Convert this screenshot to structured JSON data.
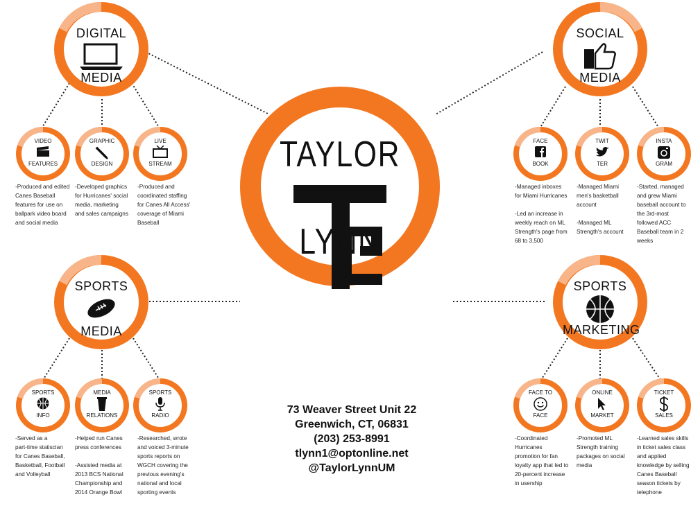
{
  "center": {
    "first_name": "TAYLOR",
    "monogram": "TL",
    "last_name": "LYNN"
  },
  "contact": {
    "address1": "73 Weaver Street Unit 22",
    "address2": "Greenwich, CT, 06831",
    "phone": "(203) 253-8991",
    "email": "tlynn1@optonline.net",
    "handle": "@TaylorLynnUM"
  },
  "hubs": {
    "digital": {
      "top": "DIGITAL",
      "bottom": "MEDIA",
      "icon": "laptop-icon"
    },
    "social": {
      "top": "SOCIAL",
      "bottom": "MEDIA",
      "icon": "thumbs-up-icon"
    },
    "sports_media": {
      "top": "SPORTS",
      "bottom": "MEDIA",
      "icon": "football-icon"
    },
    "sports_marketing": {
      "top": "SPORTS",
      "bottom": "MARKETING",
      "icon": "basketball-icon"
    }
  },
  "skills": {
    "video": {
      "top": "VIDEO",
      "bottom": "FEATURES",
      "desc": "-Produced and edited\nCanes Baseball\nfeatures for use on\nballpark video board\nand social media"
    },
    "graphic": {
      "top": "GRAPHIC",
      "bottom": "DESIGN",
      "desc": "-Developed graphics\nfor Hurricanes' social\nmedia, marketing\nand sales campaigns"
    },
    "live": {
      "top": "LIVE",
      "bottom": "STREAM",
      "desc": "-Produced and\ncoordinated staffing\nfor Canes All Access'\ncoverage of Miami\nBaseball"
    },
    "facebook": {
      "top": "FACE",
      "bottom": "BOOK",
      "desc": "-Managed inboxes\nfor Miami Hurricanes\n\n-Led an increase in\nweekly reach on ML\nStrength's page from\n68 to 3,500"
    },
    "twitter": {
      "top": "TWIT",
      "bottom": "TER",
      "desc": "-Managed Miami\nmen's basketball\naccount\n\n-Managed ML\nStrength's account"
    },
    "instagram": {
      "top": "INSTA",
      "bottom": "GRAM",
      "desc": "-Started, managed\nand grew Miami\nbaseball account to\nthe 3rd-most\nfollowed ACC\nBaseball team in 2\nweeks"
    },
    "sports_info": {
      "top": "SPORTS",
      "bottom": "INFO",
      "desc": "-Served as a\npart-time statiscian\nfor Canes Baseball,\nBasketball, Football\nand Volleyball"
    },
    "media_relations": {
      "top": "MEDIA",
      "bottom": "RELATIONS",
      "desc": "-Helped run Canes\npress conferences\n\n-Assisted media at\n2013 BCS National\nChampionship and\n2014 Orange Bowl"
    },
    "sports_radio": {
      "top": "SPORTS",
      "bottom": "RADIO",
      "desc": "-Researched, wrote\nand voiced 3-minute\nsports reports on\nWGCH covering the\nprevious evening's\nnational and local\nsporting events"
    },
    "face_to_face": {
      "top": "FACE TO",
      "bottom": "FACE",
      "desc": "-Coordinated\nHurricanes\npromotion for fan\nloyalty app that led to\n20-percent increase\nin usership"
    },
    "online": {
      "top": "ONLINE",
      "bottom": "MARKET",
      "desc": "-Promoted ML\nStrength training\npackages on social\nmedia"
    },
    "ticket": {
      "top": "TICKET",
      "bottom": "SALES",
      "desc": "-Learned sales skills\nin ticket sales class\nand applied\nknowledge by selling\nCanes Baseball\nseason tickets by\ntelephone"
    }
  },
  "colors": {
    "accent": "#f37721",
    "accent_light": "#f9b58a",
    "ink": "#111111"
  }
}
